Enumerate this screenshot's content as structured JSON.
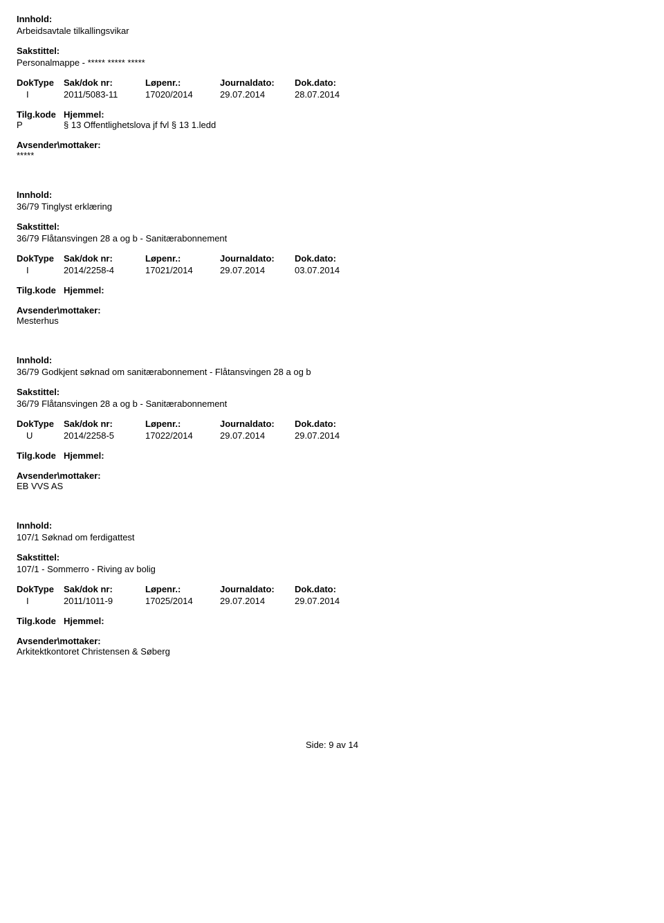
{
  "labels": {
    "innhold": "Innhold:",
    "sakstittel": "Sakstittel:",
    "doktype": "DokType",
    "saknr": "Sak/dok nr:",
    "lopen": "Løpenr.:",
    "journaldato": "Journaldato:",
    "dokdato": "Dok.dato:",
    "tilgkode": "Tilg.kode",
    "hjemmel": "Hjemmel:",
    "avsender": "Avsender\\mottaker:"
  },
  "records": [
    {
      "innhold": "Arbeidsavtale tilkallingsvikar",
      "sakstittel": "Personalmappe - ***** ***** *****",
      "doktype": "I",
      "saknr": "2011/5083-11",
      "lopen": "17020/2014",
      "journaldato": "29.07.2014",
      "dokdato": "28.07.2014",
      "tilgkode": "P",
      "hjemmel": "§ 13 Offentlighetslova jf fvl § 13 1.ledd",
      "avsender": "*****"
    },
    {
      "innhold": "36/79 Tinglyst erklæring",
      "sakstittel": "36/79 Flåtansvingen 28 a og b  -  Sanitærabonnement",
      "doktype": "I",
      "saknr": "2014/2258-4",
      "lopen": "17021/2014",
      "journaldato": "29.07.2014",
      "dokdato": "03.07.2014",
      "tilgkode": "",
      "hjemmel": "",
      "avsender": "Mesterhus"
    },
    {
      "innhold": "36/79 Godkjent søknad om sanitærabonnement - Flåtansvingen 28 a og b",
      "sakstittel": "36/79 Flåtansvingen 28 a og b  -  Sanitærabonnement",
      "doktype": "U",
      "saknr": "2014/2258-5",
      "lopen": "17022/2014",
      "journaldato": "29.07.2014",
      "dokdato": "29.07.2014",
      "tilgkode": "",
      "hjemmel": "",
      "avsender": "EB VVS AS"
    },
    {
      "innhold": "107/1 Søknad om ferdigattest",
      "sakstittel": "107/1 - Sommerro - Riving av bolig",
      "doktype": "I",
      "saknr": "2011/1011-9",
      "lopen": "17025/2014",
      "journaldato": "29.07.2014",
      "dokdato": "29.07.2014",
      "tilgkode": "",
      "hjemmel": "",
      "avsender": "Arkitektkontoret Christensen & Søberg"
    }
  ],
  "footer": {
    "prefix": "Side:",
    "current": "9",
    "sep": "av",
    "total": "14"
  }
}
